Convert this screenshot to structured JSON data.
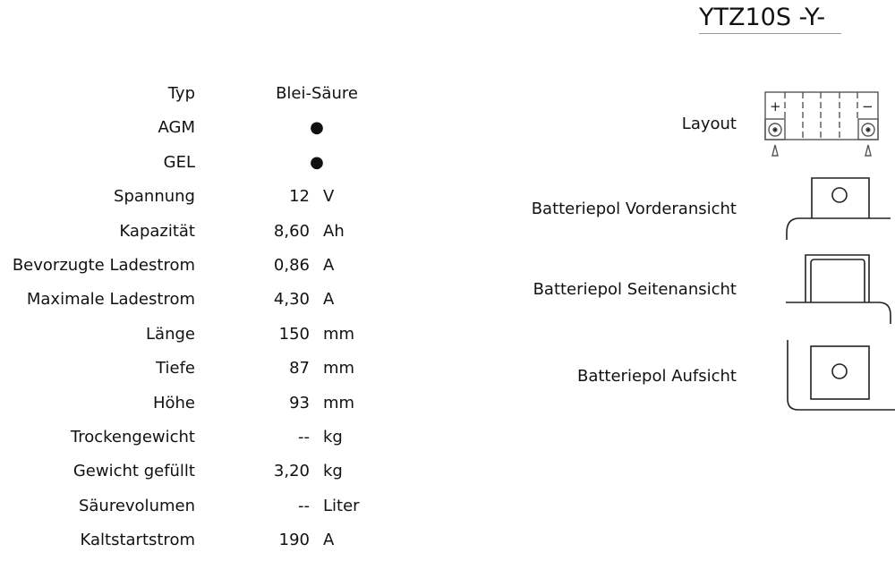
{
  "title": "YTZ10S -Y-",
  "specs": [
    {
      "label": "Typ",
      "value": "Blei-Säure",
      "unit": ""
    },
    {
      "label": "AGM",
      "value": "●",
      "unit": ""
    },
    {
      "label": "GEL",
      "value": "●",
      "unit": ""
    },
    {
      "label": "Spannung",
      "value": "12",
      "unit": "V"
    },
    {
      "label": "Kapazität",
      "value": "8,60",
      "unit": "Ah"
    },
    {
      "label": "Bevorzugte Ladestrom",
      "value": "0,86",
      "unit": "A"
    },
    {
      "label": "Maximale Ladestrom",
      "value": "4,30",
      "unit": "A"
    },
    {
      "label": "Länge",
      "value": "150",
      "unit": "mm"
    },
    {
      "label": "Tiefe",
      "value": "87",
      "unit": "mm"
    },
    {
      "label": "Höhe",
      "value": "93",
      "unit": "mm"
    },
    {
      "label": "Trockengewicht",
      "value": "--",
      "unit": "kg"
    },
    {
      "label": "Gewicht gefüllt",
      "value": "3,20",
      "unit": "kg"
    },
    {
      "label": "Säurevolumen",
      "value": "--",
      "unit": "Liter"
    },
    {
      "label": "Kaltstartstrom",
      "value": "190",
      "unit": "A"
    }
  ],
  "diagrams": {
    "layout": {
      "label": "Layout",
      "plus": "+",
      "minus": "−"
    },
    "front": {
      "label": "Batteriepol Vorderansicht"
    },
    "side": {
      "label": "Batteriepol Seitenansicht"
    },
    "top": {
      "label": "Batteriepol Aufsicht"
    }
  }
}
